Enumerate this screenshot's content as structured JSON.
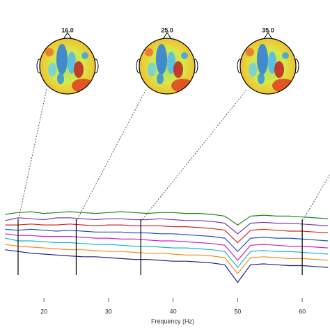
{
  "chart_data": {
    "type": "line",
    "xlabel": "Frequency (Hz)",
    "topomap_labels": [
      "16.0",
      "25.0",
      "35.0"
    ],
    "markers": [
      16,
      25,
      35,
      60
    ],
    "x": [
      14,
      16,
      18,
      20,
      22,
      24,
      26,
      28,
      30,
      32,
      34,
      36,
      38,
      40,
      42,
      44,
      46,
      48,
      50,
      52,
      54,
      56,
      58,
      60,
      62,
      64
    ],
    "xlim": [
      13.2,
      64.3
    ],
    "xticks": [
      20,
      30,
      40,
      50,
      60
    ],
    "ylim": [
      0,
      100
    ],
    "series": [
      {
        "color": "#1a8a1a",
        "values": [
          82,
          84,
          85,
          83,
          84,
          85,
          84,
          83,
          84,
          85,
          84,
          83,
          84,
          84,
          83,
          83,
          82,
          80,
          70,
          80,
          81,
          80,
          80,
          79,
          78,
          77
        ]
      },
      {
        "color": "#7a3fb0",
        "values": [
          75,
          78,
          77,
          76,
          78,
          78,
          77,
          76,
          77,
          77,
          76,
          76,
          77,
          76,
          75,
          75,
          74,
          72,
          60,
          72,
          73,
          72,
          72,
          71,
          70,
          69
        ]
      },
      {
        "color": "#d62728",
        "values": [
          70,
          70,
          71,
          70,
          70,
          71,
          70,
          69,
          70,
          70,
          69,
          69,
          69,
          68,
          68,
          67,
          66,
          64,
          50,
          64,
          65,
          64,
          63,
          63,
          62,
          61
        ]
      },
      {
        "color": "#1f4fd0",
        "values": [
          65,
          64,
          65,
          64,
          63,
          64,
          63,
          62,
          62,
          62,
          61,
          61,
          60,
          60,
          59,
          58,
          57,
          55,
          40,
          55,
          56,
          55,
          55,
          54,
          53,
          52
        ]
      },
      {
        "color": "#d020c0",
        "values": [
          60,
          58,
          58,
          57,
          57,
          57,
          56,
          55,
          55,
          54,
          54,
          53,
          52,
          52,
          51,
          50,
          49,
          47,
          30,
          47,
          48,
          47,
          46,
          46,
          45,
          44
        ]
      },
      {
        "color": "#17b8c8",
        "values": [
          55,
          52,
          52,
          51,
          50,
          50,
          49,
          48,
          48,
          47,
          46,
          46,
          45,
          44,
          44,
          43,
          42,
          40,
          22,
          40,
          41,
          40,
          40,
          39,
          38,
          37
        ]
      },
      {
        "color": "#ff8c1a",
        "values": [
          48,
          46,
          45,
          44,
          43,
          42,
          42,
          41,
          40,
          40,
          39,
          38,
          38,
          37,
          36,
          36,
          35,
          33,
          15,
          33,
          34,
          33,
          32,
          32,
          31,
          30
        ]
      },
      {
        "color": "#20208a",
        "values": [
          42,
          40,
          38,
          37,
          36,
          35,
          34,
          34,
          33,
          32,
          31,
          31,
          30,
          29,
          29,
          28,
          27,
          25,
          5,
          25,
          26,
          25,
          24,
          24,
          23,
          22
        ]
      }
    ]
  }
}
